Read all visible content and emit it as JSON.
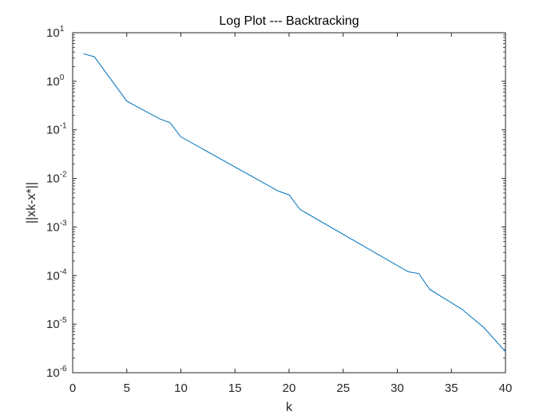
{
  "chart_data": {
    "type": "line",
    "title": "Log Plot --- Backtracking",
    "xlabel": "k",
    "ylabel": "||xk-x*||",
    "xlim": [
      0,
      40
    ],
    "ylim": [
      1e-06,
      10
    ],
    "yscale": "log",
    "grid": false,
    "x_ticks": [
      "0",
      "5",
      "10",
      "15",
      "20",
      "25",
      "30",
      "35",
      "40"
    ],
    "y_ticks": [
      {
        "base": "10",
        "exp": "1"
      },
      {
        "base": "10",
        "exp": "0"
      },
      {
        "base": "10",
        "exp": "-1"
      },
      {
        "base": "10",
        "exp": "-2"
      },
      {
        "base": "10",
        "exp": "-3"
      },
      {
        "base": "10",
        "exp": "-4"
      },
      {
        "base": "10",
        "exp": "-5"
      },
      {
        "base": "10",
        "exp": "-6"
      }
    ],
    "series": [
      {
        "color": "#0072BD",
        "x": [
          1,
          2,
          5,
          8,
          9,
          10,
          19,
          20,
          21,
          31,
          32,
          33,
          36,
          38,
          40
        ],
        "y": [
          3.7,
          3.2,
          0.39,
          0.17,
          0.14,
          0.072,
          0.0055,
          0.0046,
          0.0023,
          0.00012,
          0.00011,
          5.2e-05,
          2e-05,
          8.5e-06,
          2.7e-06
        ]
      }
    ]
  }
}
